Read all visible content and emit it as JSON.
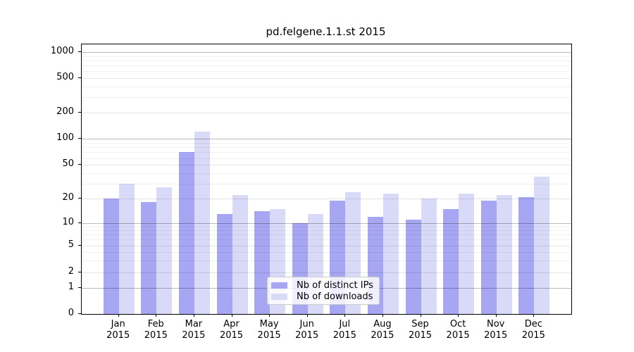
{
  "title": "pd.felgene.1.1.st 2015",
  "colors": {
    "distinct_ips_bar": "#a6a6f2",
    "downloads_bar": "#d9d9f8",
    "axis": "#000000",
    "grid_major": "rgba(0,0,0,0.27)",
    "grid_mid": "rgba(0,0,0,0.10)",
    "grid_minor": "rgba(0,0,0,0.055)",
    "legend_border": "#cccccc"
  },
  "legend": {
    "entries": [
      "Nb of distinct IPs",
      "Nb of downloads"
    ],
    "position": "lower-center"
  },
  "chart_data": {
    "type": "bar",
    "title": "pd.felgene.1.1.st 2015",
    "categories": [
      "Jan",
      "Feb",
      "Mar",
      "Apr",
      "May",
      "Jun",
      "Jul",
      "Aug",
      "Sep",
      "Oct",
      "Nov",
      "Dec"
    ],
    "x_tick_second_line": "2015",
    "series": [
      {
        "name": "Nb of distinct IPs",
        "color": "#a6a6f2",
        "values": [
          20,
          18,
          70,
          13,
          14,
          10,
          19,
          12,
          11,
          15,
          19,
          21
        ]
      },
      {
        "name": "Nb of downloads",
        "color": "#d9d9f8",
        "values": [
          30,
          27,
          120,
          22,
          15,
          13,
          24,
          23,
          20,
          23,
          22,
          36
        ]
      }
    ],
    "xlabel": "",
    "ylabel": "",
    "y_scale": "symlog",
    "y_ticks": [
      0,
      1,
      2,
      5,
      10,
      20,
      50,
      100,
      200,
      500,
      1000
    ],
    "ylim": [
      0,
      1200
    ],
    "grid": true,
    "legend_position": "lower center"
  }
}
